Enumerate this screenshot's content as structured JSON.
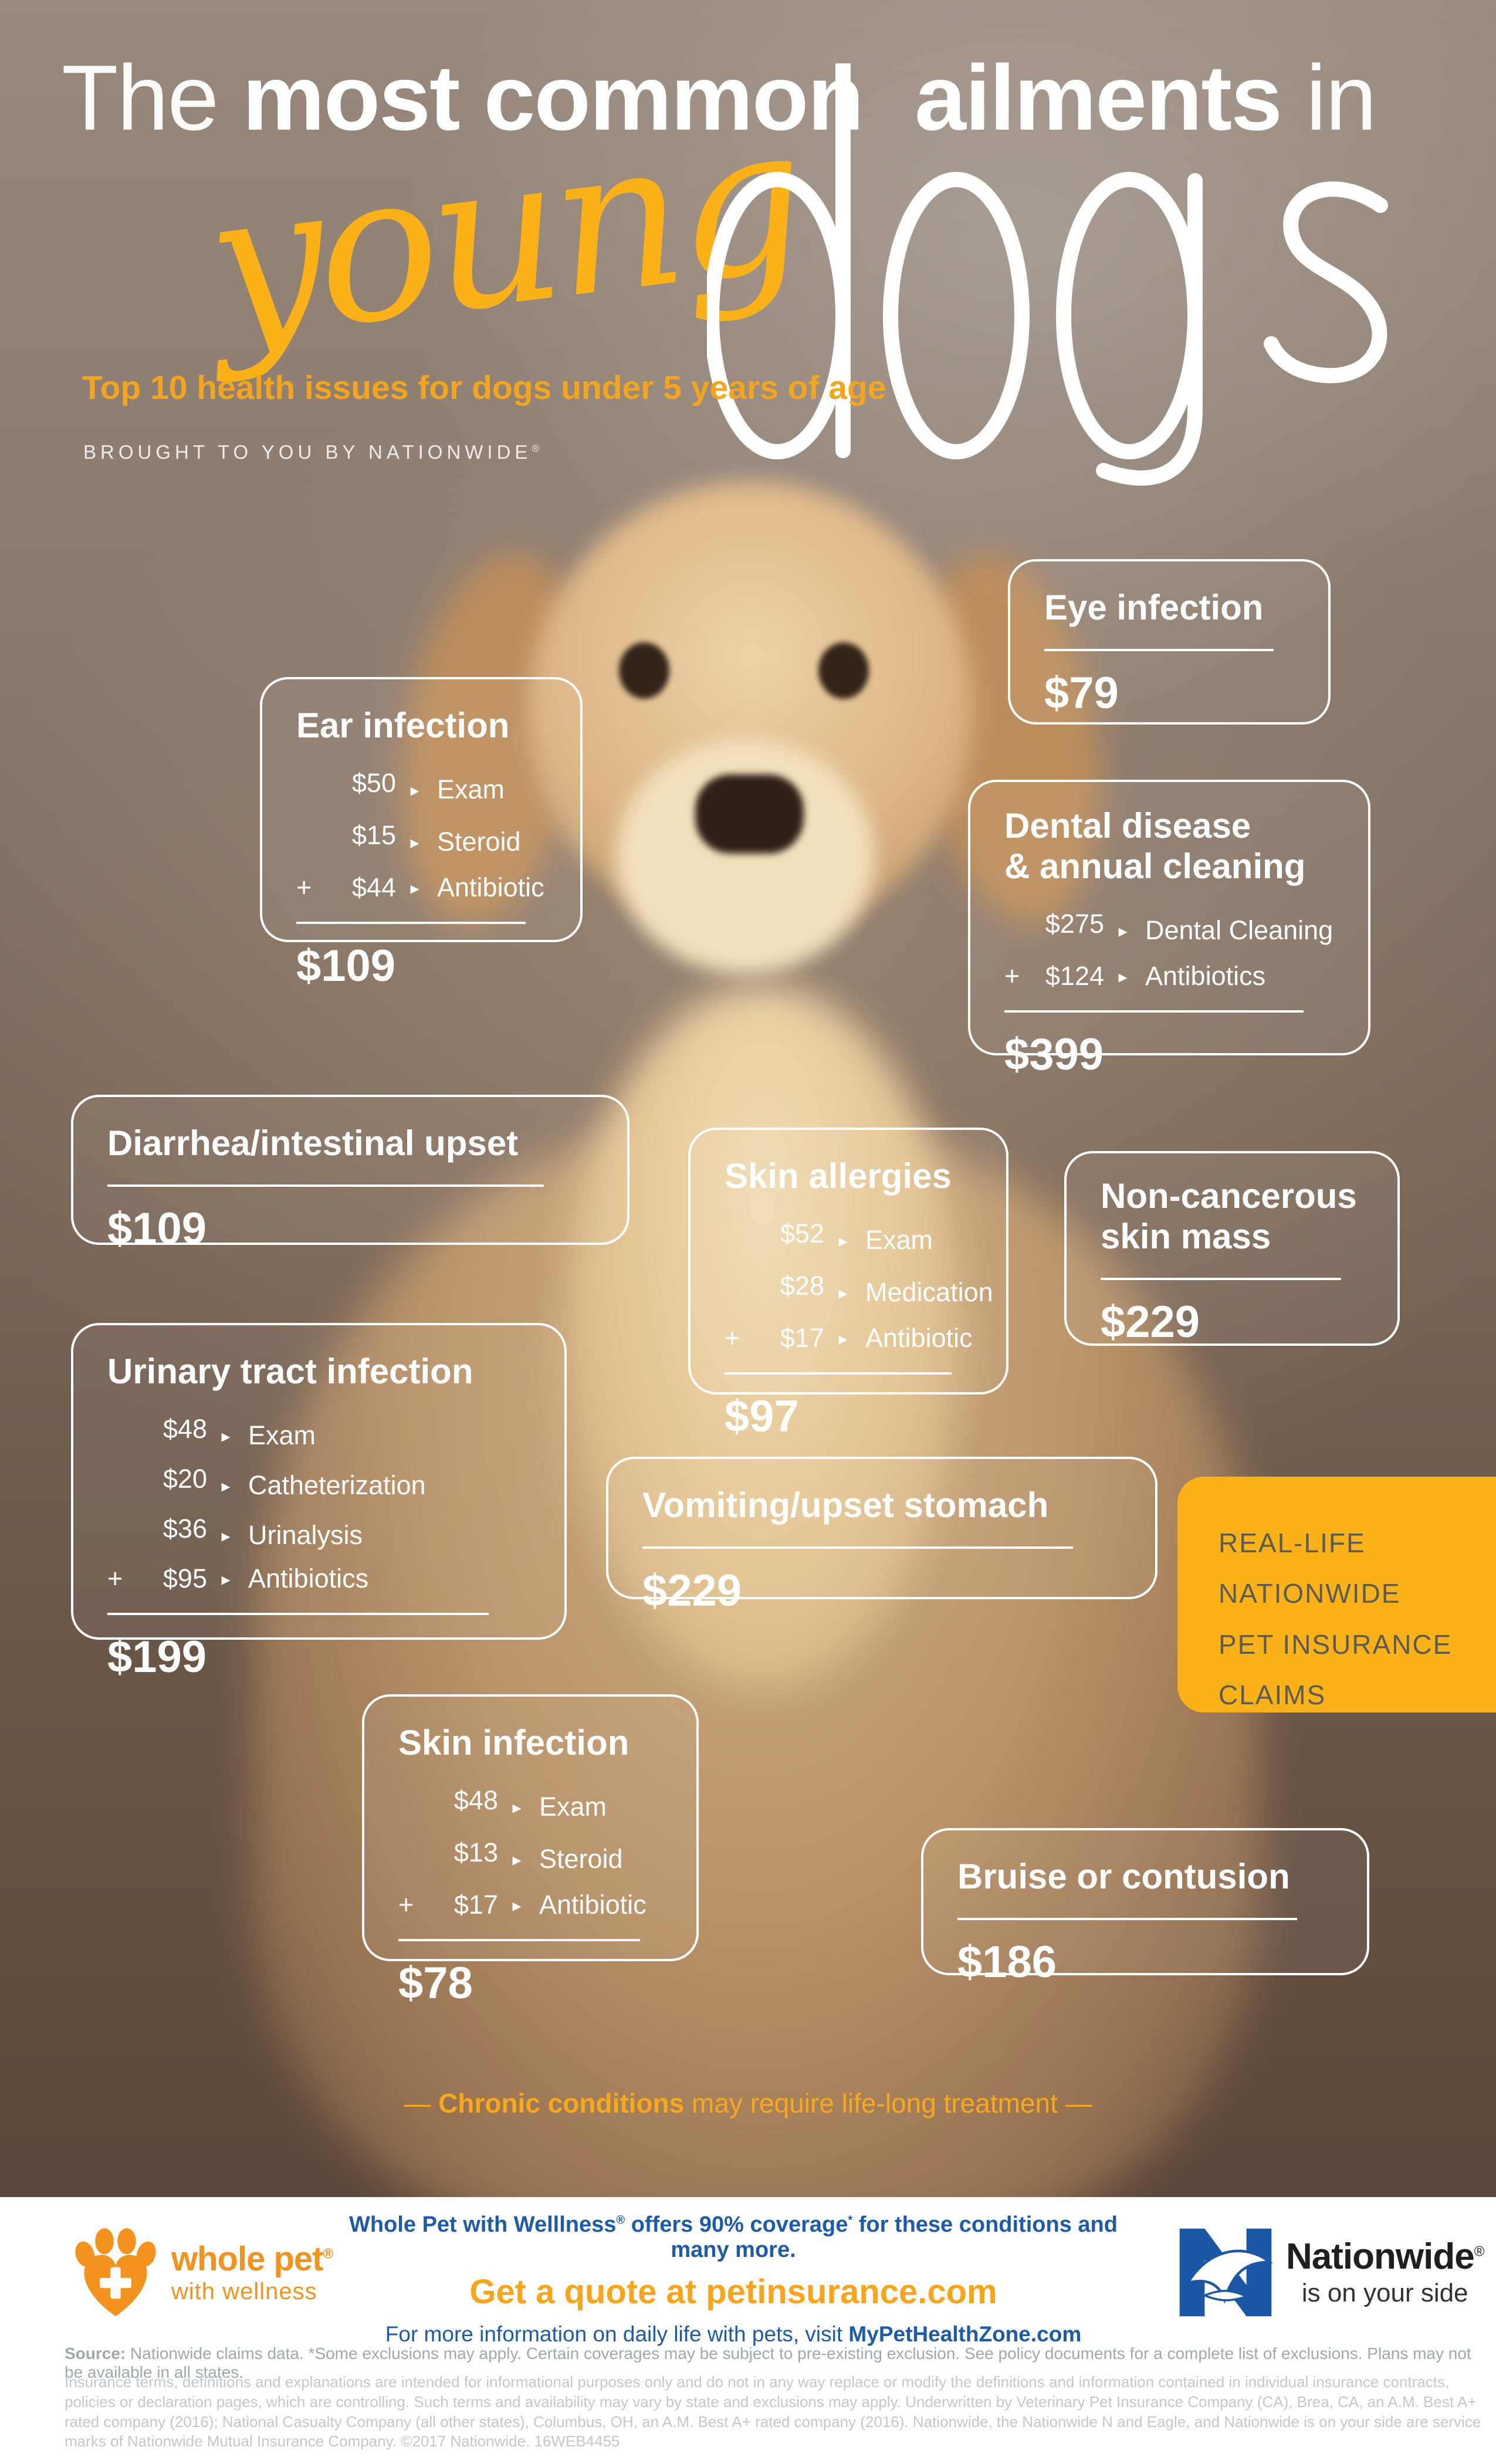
{
  "header": {
    "t1": "The ",
    "t2": "most common",
    "t3": "ailments",
    "t4": " in",
    "script_word": "young",
    "big_word": "dogs",
    "subtitle": "Top 10 health issues for dogs under 5 years of age",
    "byline": "BROUGHT TO YOU BY NATIONWIDE",
    "byline_reg": "®"
  },
  "icons": {
    "arrow": "▸",
    "dogs_wordmark": "dogs-wordmark",
    "paw_heart_cross": "whole-pet-logo",
    "n_and_eagle": "nationwide-logo"
  },
  "colors": {
    "accent_yellow": "#FBB218",
    "subtitle_gold": "#F3A51D",
    "footer_blue": "#1D5BA8",
    "cta_orange": "#F9A51B",
    "wholepet_orange": "#F4921E",
    "nationwide_blue": "#1C57A5",
    "claims_text": "#5C5C55",
    "box_border": "#FFFFFF"
  },
  "ailments": [
    {
      "key": "eye",
      "title": "Eye infection",
      "items": [],
      "total": "$79"
    },
    {
      "key": "ear",
      "title": "Ear infection",
      "items": [
        {
          "plus": "",
          "price": "$50",
          "label": "Exam"
        },
        {
          "plus": "",
          "price": "$15",
          "label": "Steroid"
        },
        {
          "plus": "+",
          "price": "$44",
          "label": "Antibiotic"
        }
      ],
      "total": "$109"
    },
    {
      "key": "dental",
      "title": "Dental disease\n& annual cleaning",
      "items": [
        {
          "plus": "",
          "price": "$275",
          "label": "Dental Cleaning"
        },
        {
          "plus": "+",
          "price": "$124",
          "label": "Antibiotics"
        }
      ],
      "total": "$399"
    },
    {
      "key": "diarrhea",
      "title": "Diarrhea/intestinal upset",
      "items": [],
      "total": "$109"
    },
    {
      "key": "allergies",
      "title": "Skin allergies",
      "items": [
        {
          "plus": "",
          "price": "$52",
          "label": "Exam"
        },
        {
          "plus": "",
          "price": "$28",
          "label": "Medication"
        },
        {
          "plus": "+",
          "price": "$17",
          "label": "Antibiotic"
        }
      ],
      "total": "$97"
    },
    {
      "key": "mass",
      "title": "Non-cancerous\nskin mass",
      "items": [],
      "total": "$229"
    },
    {
      "key": "uti",
      "title": "Urinary tract infection",
      "items": [
        {
          "plus": "",
          "price": "$48",
          "label": "Exam"
        },
        {
          "plus": "",
          "price": "$20",
          "label": "Catheterization"
        },
        {
          "plus": "",
          "price": "$36",
          "label": "Urinalysis"
        },
        {
          "plus": "+",
          "price": "$95",
          "label": "Antibiotics"
        }
      ],
      "total": "$199"
    },
    {
      "key": "vomit",
      "title": "Vomiting/upset stomach",
      "items": [],
      "total": "$229"
    },
    {
      "key": "skininf",
      "title": "Skin infection",
      "items": [
        {
          "plus": "",
          "price": "$48",
          "label": "Exam"
        },
        {
          "plus": "",
          "price": "$13",
          "label": "Steroid"
        },
        {
          "plus": "+",
          "price": "$17",
          "label": "Antibiotic"
        }
      ],
      "total": "$78"
    },
    {
      "key": "bruise",
      "title": "Bruise or contusion",
      "items": [],
      "total": "$186"
    }
  ],
  "claims_callout": {
    "lines": [
      "REAL-LIFE",
      "NATIONWIDE",
      "PET INSURANCE",
      "CLAIMS"
    ]
  },
  "chronic": {
    "open": "—  ",
    "bold": "Chronic conditions",
    "rest": " may require life-long treatment ",
    "close": " —"
  },
  "footer": {
    "wholepet_name": "whole pet",
    "wholepet_reg": "®",
    "wholepet_tag": "with wellness",
    "line1_a": "Whole Pet with Welllness",
    "line1_sup1": "®",
    "line1_b": " offers 90% coverage",
    "line1_sup2": "*",
    "line1_c": " for these conditions and many more.",
    "cta": "Get a quote at petinsurance.com",
    "info_pre": "For more information on daily life with pets, visit ",
    "info_bold": "MyPetHealthZone.com",
    "nationwide_name": "Nationwide",
    "nationwide_reg": "®",
    "nationwide_tag": "is on your side"
  },
  "legal": {
    "source_label": "Source:",
    "source_text": " Nationwide claims data. *Some exclusions may apply. Certain coverages may be subject to pre-existing exclusion. See policy documents for a complete list of exclusions. Plans may not be available in all states.",
    "disclaimer": "Insurance terms, definitions and explanations are intended for informational purposes only and do not in any way replace or modify the definitions and information contained in individual insurance contracts, policies or declaration pages, which are controlling. Such terms and availability may vary by state and exclusions may apply. Underwritten by Veterinary Pet Insurance Company (CA), Brea, CA, an A.M. Best A+ rated company (2016); National Casualty Company (all other states), Columbus, OH, an A.M. Best A+ rated company (2016). Nationwide, the Nationwide N and Eagle, and Nationwide is on your side are service marks of Nationwide Mutual Insurance Company.  ©2017 Nationwide.  16WEB4455"
  }
}
